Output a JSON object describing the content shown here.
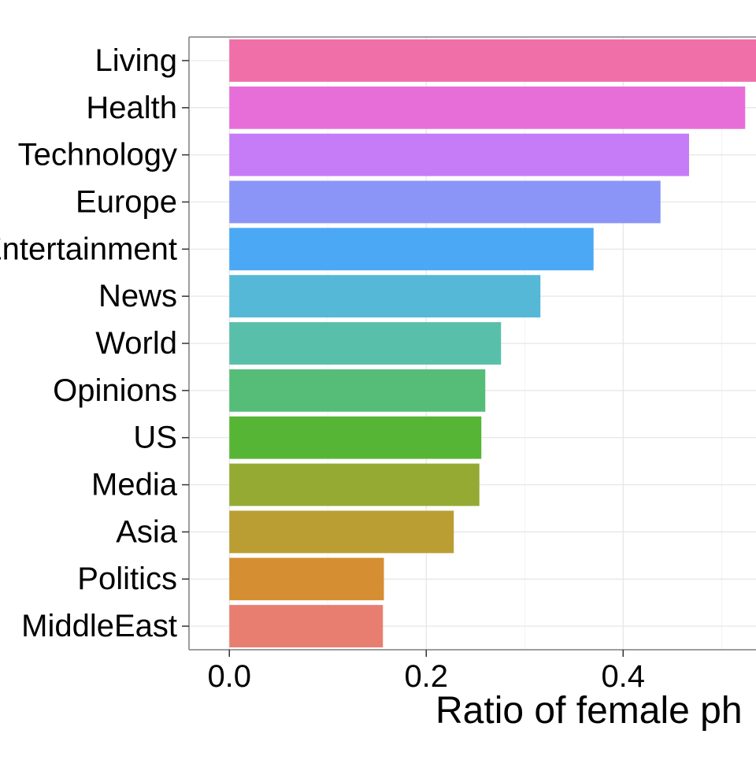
{
  "chart_data": {
    "type": "bar",
    "orientation": "horizontal",
    "categories": [
      "Living",
      "Health",
      "Technology",
      "Europe",
      "Entertainment",
      "News",
      "World",
      "Opinions",
      "US",
      "Media",
      "Asia",
      "Politics",
      "MiddleEast"
    ],
    "values": [
      0.535,
      0.524,
      0.467,
      0.438,
      0.37,
      0.316,
      0.276,
      0.26,
      0.256,
      0.254,
      0.228,
      0.157,
      0.156
    ],
    "colors": [
      "#F06FA8",
      "#E76DD9",
      "#C67BF7",
      "#8B95F7",
      "#4BA8F5",
      "#55B8D6",
      "#58BFAA",
      "#56BD79",
      "#57B535",
      "#95AA33",
      "#BA9E33",
      "#D68E33",
      "#E87E70"
    ],
    "xlabel": "Ratio of female ph",
    "ylabel": "",
    "title": "",
    "xticks": [
      0.0,
      0.2,
      0.4
    ],
    "xtick_labels": [
      "0.0",
      "0.2",
      "0.4"
    ],
    "xlim": [
      -0.041,
      0.535
    ],
    "grid": true,
    "legend": "none"
  }
}
